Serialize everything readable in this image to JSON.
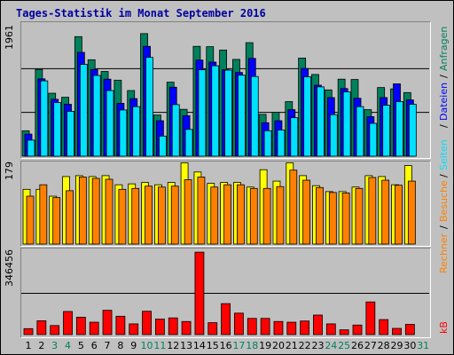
{
  "title": "Tages-Statistik im Monat September 2016",
  "y_labels": {
    "top": "1961",
    "middle": "179",
    "bottom": "346456"
  },
  "legend": {
    "hits": "Anfragen",
    "files": "Dateien",
    "pages": "Seiten",
    "visits": "Besuche",
    "sites": "Rechner",
    "kb": "kB",
    "separator": "/"
  },
  "colors": {
    "hits": "#00805c",
    "files": "#0000ff",
    "pages": "#00e0ff",
    "visits": "#ffff00",
    "sites": "#ff8000",
    "kb": "#ff0000",
    "weekend_day": "#00805c",
    "weekday": "#000000",
    "title": "#0000a0"
  },
  "chart_data": [
    {
      "type": "bar",
      "categories": [
        "1",
        "2",
        "3",
        "4",
        "5",
        "6",
        "7",
        "8",
        "9",
        "10",
        "11",
        "12",
        "13",
        "14",
        "15",
        "16",
        "17",
        "18",
        "19",
        "20",
        "21",
        "22",
        "23",
        "24",
        "25",
        "26",
        "27",
        "28",
        "29",
        "30",
        "31"
      ],
      "weekend_days": [
        "3",
        "4",
        "10",
        "11",
        "17",
        "18",
        "24",
        "25",
        "31"
      ],
      "ylim": [
        0,
        1961
      ],
      "series": [
        {
          "name": "Anfragen",
          "values": [
            380,
            1295,
            940,
            880,
            1785,
            1440,
            1265,
            1135,
            980,
            1830,
            615,
            1105,
            700,
            1640,
            1635,
            1585,
            1445,
            1695,
            625,
            655,
            815,
            1465,
            1220,
            990,
            1150,
            1145,
            695,
            1025,
            1005,
            950,
            0
          ]
        },
        {
          "name": "Dateien",
          "values": [
            330,
            1155,
            850,
            775,
            1550,
            1295,
            1150,
            790,
            860,
            1640,
            530,
            1030,
            605,
            1435,
            1405,
            1290,
            1250,
            1460,
            500,
            530,
            695,
            1310,
            1060,
            875,
            1010,
            865,
            590,
            875,
            1080,
            840,
            0
          ]
        },
        {
          "name": "Seiten",
          "values": [
            240,
            1125,
            800,
            670,
            1370,
            1205,
            980,
            690,
            740,
            1475,
            300,
            770,
            400,
            1290,
            1350,
            1285,
            1210,
            1190,
            380,
            390,
            575,
            1185,
            1035,
            620,
            960,
            740,
            490,
            760,
            815,
            775,
            0
          ]
        }
      ]
    },
    {
      "type": "bar",
      "categories": [
        "1",
        "2",
        "3",
        "4",
        "5",
        "6",
        "7",
        "8",
        "9",
        "10",
        "11",
        "12",
        "13",
        "14",
        "15",
        "16",
        "17",
        "18",
        "19",
        "20",
        "21",
        "22",
        "23",
        "24",
        "25",
        "26",
        "27",
        "28",
        "29",
        "30",
        "31"
      ],
      "ylim": [
        0,
        179
      ],
      "series": [
        {
          "name": "Besuche",
          "values": [
            120,
            120,
            105,
            148,
            150,
            148,
            150,
            130,
            132,
            135,
            130,
            135,
            178,
            158,
            133,
            135,
            135,
            125,
            163,
            138,
            178,
            150,
            128,
            115,
            115,
            125,
            150,
            148,
            130,
            172,
            0
          ]
        },
        {
          "name": "Rechner",
          "values": [
            105,
            130,
            102,
            117,
            147,
            144,
            142,
            120,
            122,
            127,
            125,
            127,
            141,
            147,
            125,
            130,
            130,
            122,
            122,
            126,
            162,
            140,
            124,
            113,
            112,
            122,
            146,
            140,
            129,
            138,
            0
          ]
        }
      ]
    },
    {
      "type": "bar",
      "categories": [
        "1",
        "2",
        "3",
        "4",
        "5",
        "6",
        "7",
        "8",
        "9",
        "10",
        "11",
        "12",
        "13",
        "14",
        "15",
        "16",
        "17",
        "18",
        "19",
        "20",
        "21",
        "22",
        "23",
        "24",
        "25",
        "26",
        "27",
        "28",
        "29",
        "30",
        "31"
      ],
      "ylim": [
        0,
        346456
      ],
      "series": [
        {
          "name": "kB",
          "values": [
            25000,
            58000,
            38000,
            97000,
            73000,
            52000,
            102000,
            77000,
            45000,
            98000,
            65000,
            70000,
            55000,
            346000,
            50000,
            130000,
            90000,
            68000,
            68000,
            55000,
            52000,
            57000,
            82000,
            45000,
            20000,
            40000,
            137000,
            63000,
            26000,
            43000,
            0
          ]
        }
      ]
    }
  ]
}
